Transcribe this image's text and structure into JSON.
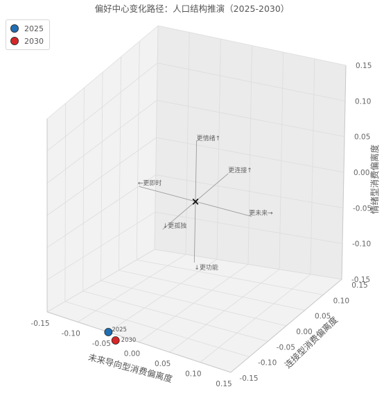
{
  "chart_data": {
    "type": "scatter3d",
    "title": "偏好中心变化路径：人口结构推演（2025-2030）",
    "xlabel": "未来导向型消费偏离度",
    "ylabel": "连接型消费偏离度",
    "zlabel": "情绪型消费偏离度",
    "xlim": [
      -0.15,
      0.15
    ],
    "ylim": [
      -0.15,
      0.15
    ],
    "zlim": [
      -0.15,
      0.15
    ],
    "xticks": [
      "-0.15",
      "-0.10",
      "-0.05",
      "0.00",
      "0.05",
      "0.10",
      "0.15"
    ],
    "yticks": [
      "-0.15",
      "-0.10",
      "-0.05",
      "0.00",
      "0.05",
      "0.10",
      "0.15"
    ],
    "zticks": [
      "-0.15",
      "-0.10",
      "-0.05",
      "0.00",
      "0.05",
      "0.10",
      "0.15"
    ],
    "grid": true,
    "legend_position": "top-left",
    "series": [
      {
        "name": "2025",
        "color": "#1f6fb4",
        "x": -0.05,
        "y": -0.15,
        "z": -0.15,
        "label": "2025"
      },
      {
        "name": "2030",
        "color": "#d62728",
        "x": -0.045,
        "y": -0.15,
        "z": -0.155,
        "label": "2030"
      }
    ],
    "origin_marker": "×",
    "annotations": [
      {
        "text": "更情绪↑",
        "axis": "z",
        "end": "+"
      },
      {
        "text": "↓更功能",
        "axis": "z",
        "end": "-"
      },
      {
        "text": "更连接↑",
        "axis": "y",
        "end": "+"
      },
      {
        "text": "↓更孤独",
        "axis": "y",
        "end": "-"
      },
      {
        "text": "更未来→",
        "axis": "x",
        "end": "+"
      },
      {
        "text": "←更即时",
        "axis": "x",
        "end": "-"
      }
    ]
  }
}
